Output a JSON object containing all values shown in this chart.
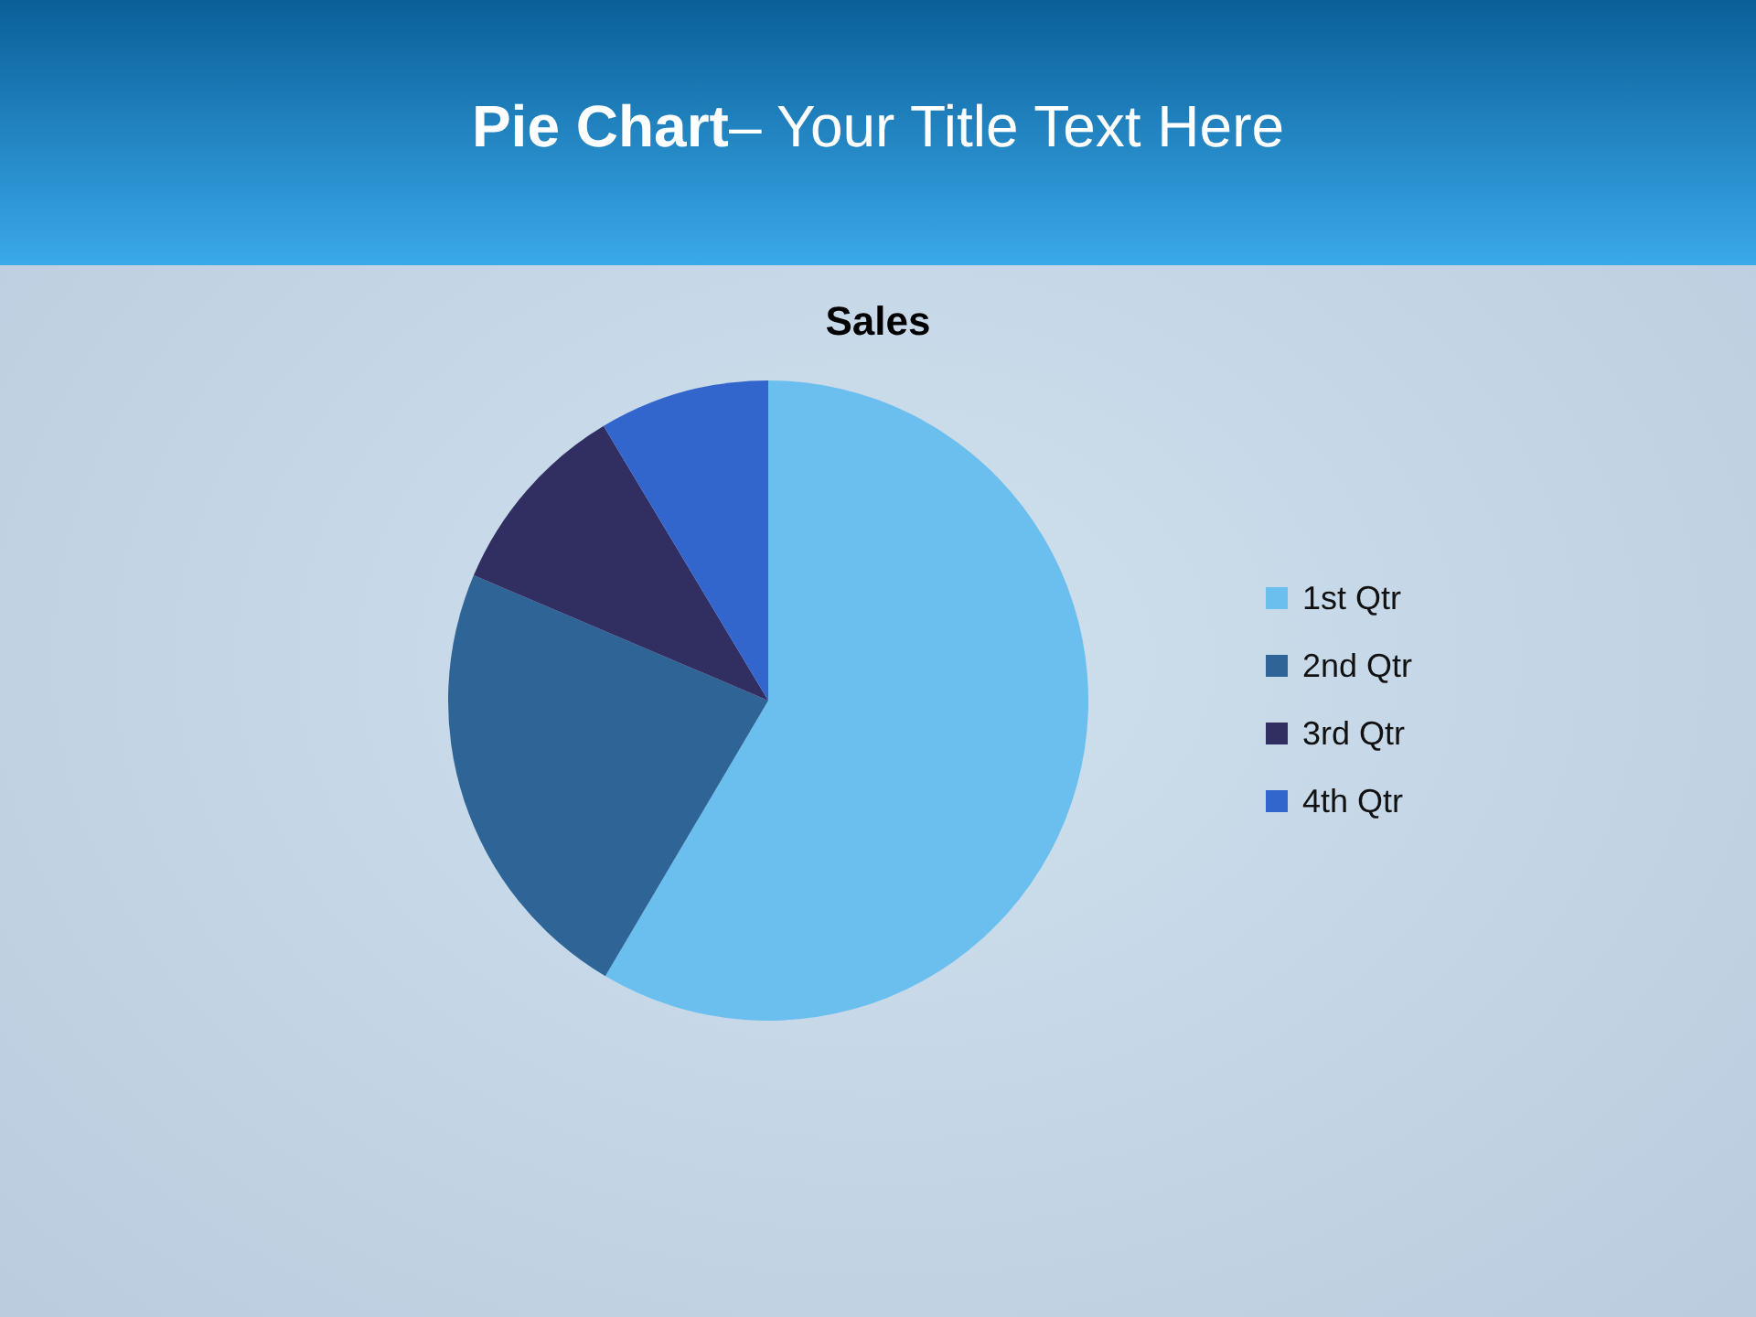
{
  "chart_data": {
    "type": "pie",
    "title": "Pie Chart– Your Title Text Here",
    "subtitle": "Sales",
    "categories": [
      "1st Qtr",
      "2nd Qtr",
      "3rd Qtr",
      "4th Qtr"
    ],
    "values": [
      58.5,
      22.9,
      10,
      8.6
    ],
    "colors": [
      "#6bbfee",
      "#2e6496",
      "#312f62",
      "#3266cc"
    ],
    "legend": "right"
  }
}
